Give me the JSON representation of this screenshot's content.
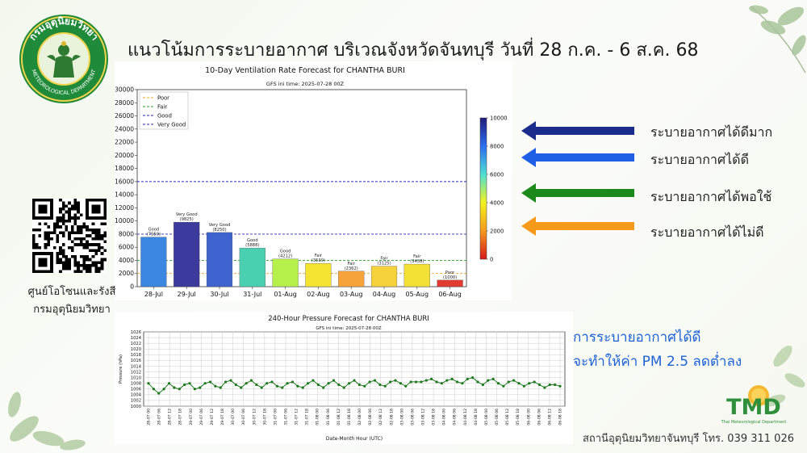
{
  "header": {
    "title": "แนวโน้มการระบายอากาศ บริเวณจังหวัดจันทบุรี วันที่ 28 ก.ค. - 6 ส.ค. 68"
  },
  "logo": {
    "top_text": "กรมอุตุนิยมวิทยา",
    "bottom_text": "METEOROLOGICAL DEPARTMENT"
  },
  "qr": {
    "caption_line1": "ศูนย์โอโซนและรังสี",
    "caption_line2": "กรมอุตุนิยมวิทยา"
  },
  "legend_arrows": [
    {
      "label": "ระบายอากาศได้ดีมาก",
      "color": "#1a2c8c"
    },
    {
      "label": "ระบายอากาศได้ดี",
      "color": "#1f5fe6"
    },
    {
      "label": "ระบายอากาศได้พอใช้",
      "color": "#1b8a1b"
    },
    {
      "label": "ระบายอากาศได้ไม่ดี",
      "color": "#f59a1b"
    }
  ],
  "note": {
    "line1": "การระบายอากาศได้ดี",
    "line2": "จะทำให้ค่า PM 2.5 ลดต่ำลง"
  },
  "tmd": {
    "letters": "TMD",
    "subtitle": "Thai Meteorological Department"
  },
  "footer": {
    "text": "สถานีอุตุนิยมวิทยาจันทบุรี โทร. 039 311 026"
  },
  "chart_data": [
    {
      "type": "bar",
      "title": "10-Day Ventilation Rate Forecast for CHANTHA BURI",
      "subtitle": "GFS ini time: 2025-07-28 00Z",
      "categories": [
        "28-Jul",
        "29-Jul",
        "30-Jul",
        "31-Jul",
        "01-Aug",
        "02-Aug",
        "03-Aug",
        "04-Aug",
        "05-Aug",
        "06-Aug"
      ],
      "values": [
        7550,
        9825,
        8250,
        5888,
        4212,
        3539,
        2362,
        3125,
        3438,
        1000
      ],
      "bar_labels": [
        "Good",
        "Very Good",
        "Very Good",
        "Good",
        "Good",
        "Fair",
        "Fair",
        "Fair",
        "Fair",
        "Poor"
      ],
      "value_labels": [
        "(7550)",
        "(9825)",
        "(8250)",
        "(5888)",
        "(4212)",
        "(3539)",
        "(2362)",
        "(3125)",
        "(3438)",
        "(1000)"
      ],
      "bar_colors": [
        "#3a86e0",
        "#3d3a9e",
        "#3e63cf",
        "#4ad0b0",
        "#b6f04a",
        "#f5e532",
        "#f7a33c",
        "#f5d23c",
        "#f2e035",
        "#e03a32"
      ],
      "ylim": [
        0,
        30000
      ],
      "yticks": [
        0,
        2000,
        4000,
        6000,
        8000,
        10000,
        12000,
        14000,
        16000,
        18000,
        20000,
        22000,
        24000,
        26000,
        28000,
        30000
      ],
      "thresholds": [
        {
          "name": "Poor",
          "value": 2000,
          "color": "#f0a020"
        },
        {
          "name": "Fair",
          "value": 4000,
          "color": "#2ca02c"
        },
        {
          "name": "Good",
          "value": 8000,
          "color": "#2a2ab8"
        },
        {
          "name": "Very Good",
          "value": 16000,
          "color": "#2a2ab8"
        }
      ],
      "legend_position": "top-left",
      "colorbar": {
        "min": 0,
        "max": 10000,
        "ticks": [
          0,
          2000,
          4000,
          6000,
          8000,
          10000
        ]
      }
    },
    {
      "type": "line",
      "title": "240-Hour Pressure Forecast for CHANTHA BURI",
      "subtitle": "GFS ini time: 2025-07-28 00Z",
      "xlabel": "Date-Month Hour (UTC)",
      "ylabel": "Pressure (hPa)",
      "ylim": [
        1000,
        1026
      ],
      "yticks": [
        1000,
        1002,
        1004,
        1006,
        1008,
        1010,
        1012,
        1014,
        1016,
        1018,
        1020,
        1022,
        1024,
        1026
      ],
      "x_ticks": [
        "28-07 00",
        "28-07 06",
        "28-07 12",
        "28-07 18",
        "29-07 00",
        "29-07 06",
        "29-07 12",
        "29-07 18",
        "30-07 00",
        "30-07 06",
        "30-07 12",
        "30-07 18",
        "31-07 00",
        "31-07 06",
        "31-07 12",
        "31-07 18",
        "01-08 00",
        "01-08 06",
        "01-08 12",
        "01-08 18",
        "02-08 00",
        "02-08 06",
        "02-08 12",
        "02-08 18",
        "03-08 00",
        "03-08 06",
        "03-08 12",
        "03-08 18",
        "04-08 00",
        "04-08 06",
        "04-08 12",
        "04-08 18",
        "05-08 00",
        "05-08 06",
        "05-08 12",
        "05-08 18",
        "06-08 00",
        "06-08 06",
        "06-08 12",
        "06-08 18"
      ],
      "y": [
        1008,
        1006,
        1004.5,
        1006,
        1008,
        1006.5,
        1006,
        1007.5,
        1008,
        1006,
        1006.5,
        1008,
        1008.5,
        1007,
        1006.5,
        1008.5,
        1009,
        1007.5,
        1006.5,
        1008,
        1009,
        1007.5,
        1006.5,
        1008,
        1008.5,
        1007,
        1006.5,
        1008,
        1008.5,
        1007,
        1006.5,
        1008,
        1009,
        1007.5,
        1006.5,
        1008,
        1009,
        1007.5,
        1006.5,
        1008,
        1009,
        1007.5,
        1007,
        1008.5,
        1009,
        1007.5,
        1007,
        1008.5,
        1009,
        1008,
        1007,
        1008.5,
        1008.5,
        1008.5,
        1009,
        1009.5,
        1008.5,
        1008,
        1009,
        1009.5,
        1008.5,
        1008,
        1009.5,
        1010,
        1008.5,
        1007.5,
        1009,
        1009.5,
        1008,
        1007,
        1008.5,
        1009,
        1008,
        1007,
        1008,
        1008.5,
        1007.5,
        1006.5,
        1007.5,
        1007.5,
        1007
      ]
    }
  ]
}
